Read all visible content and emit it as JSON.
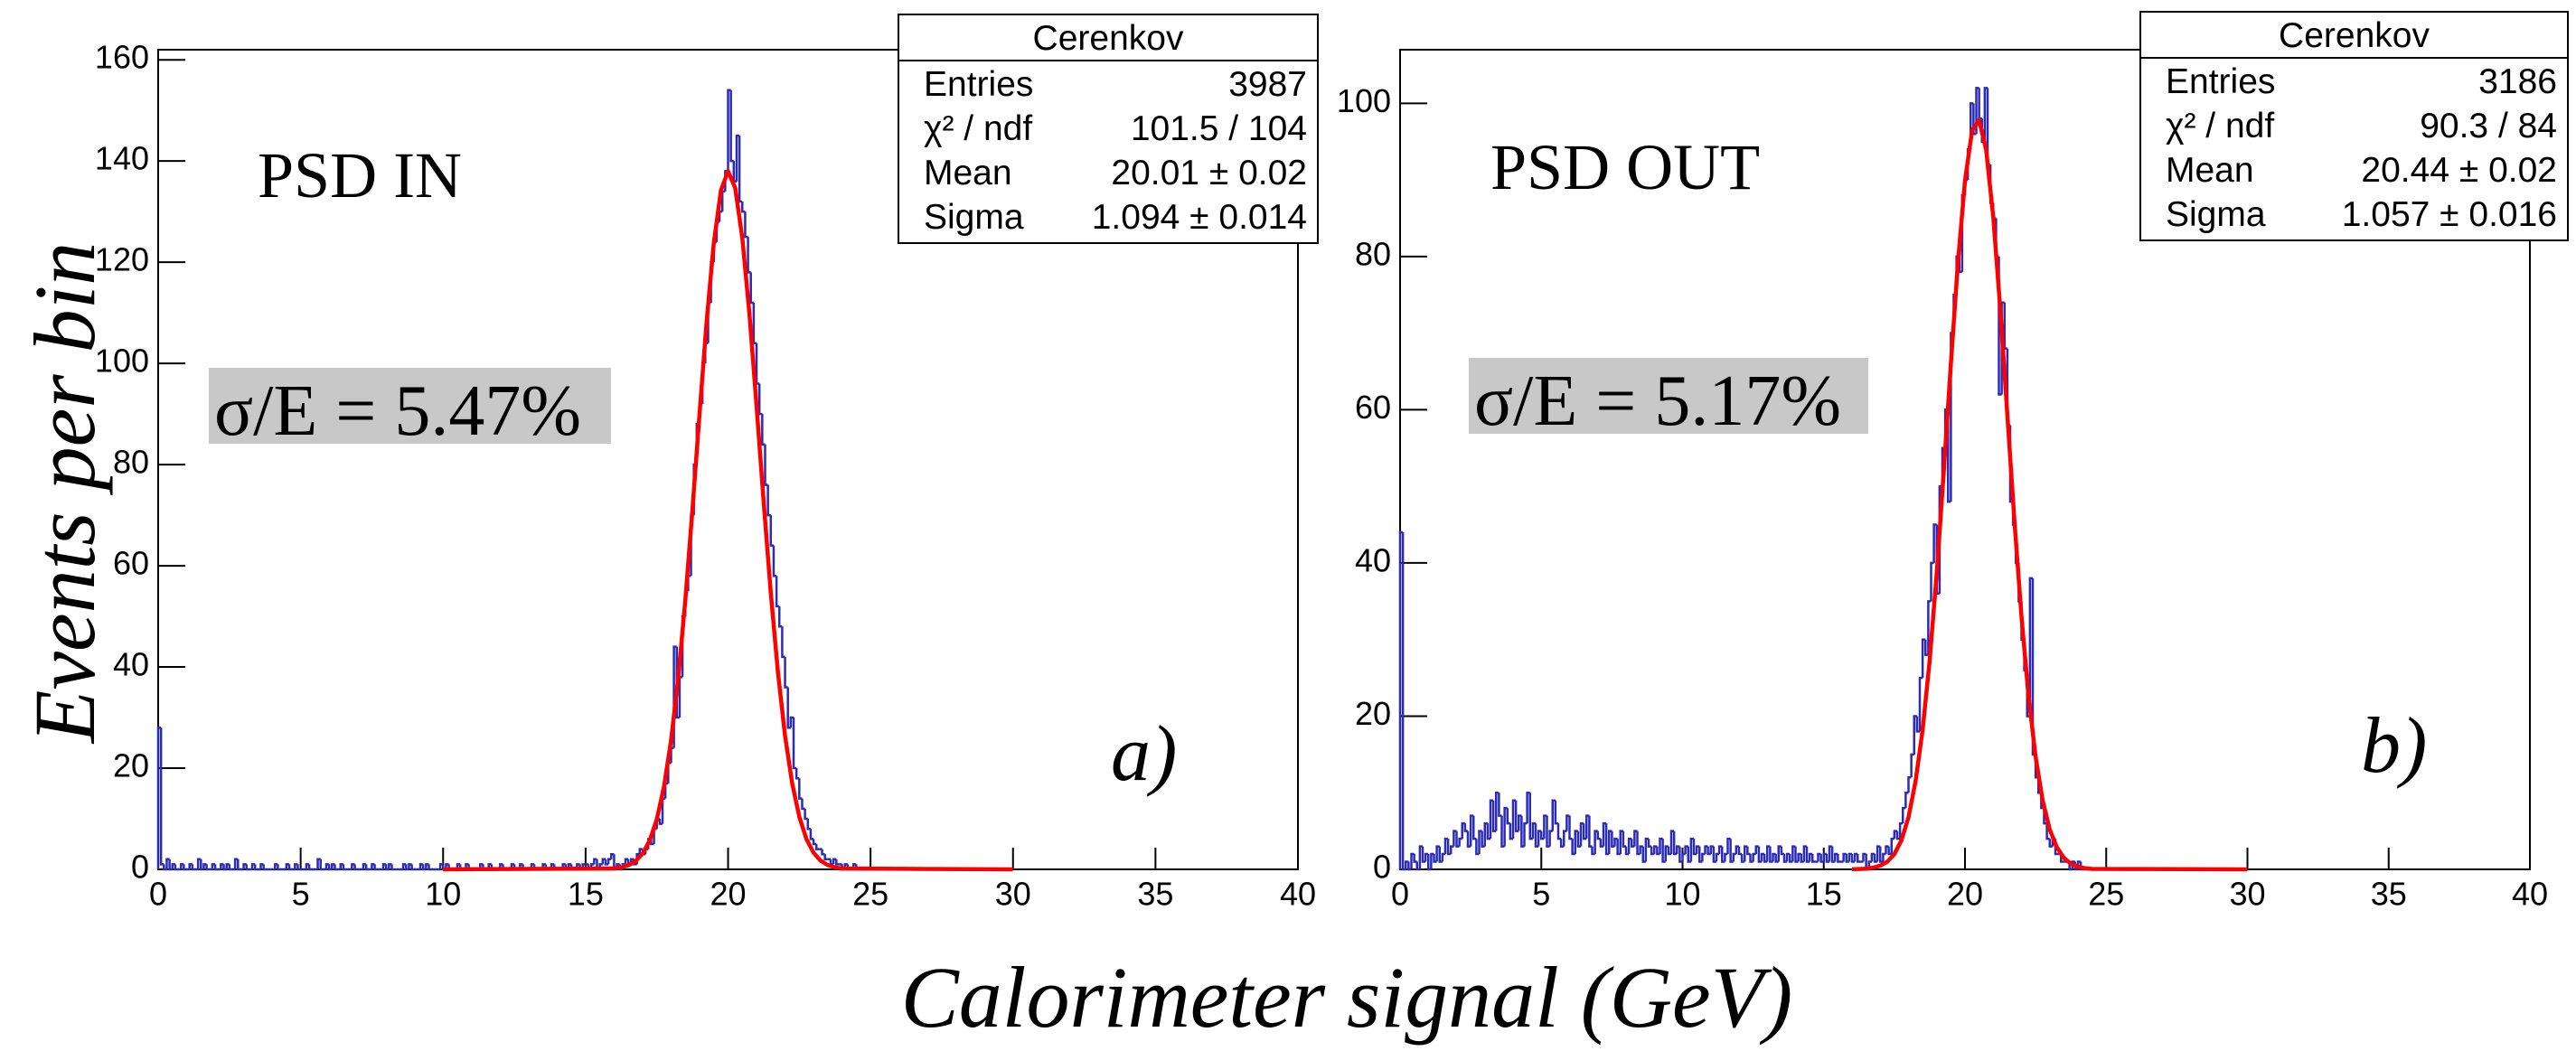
{
  "xlabel": "Calorimeter signal (GeV)",
  "ylabel": "Events per bin",
  "chart_data": [
    {
      "type": "histogram",
      "label": "PSD IN",
      "resolution": "σ/E = 5.47%",
      "panel": "a)",
      "stats": {
        "title": "Cerenkov",
        "rows": [
          [
            "Entries",
            "3987"
          ],
          [
            "χ² / ndf",
            "101.5 / 104"
          ],
          [
            "Mean",
            "20.01 ± 0.02"
          ],
          [
            "Sigma",
            "1.094 ± 0.014"
          ]
        ]
      },
      "color": "#2b2bb5",
      "fit_color": "#ff0000",
      "xlim": [
        0,
        40
      ],
      "xticks": [
        0,
        5,
        10,
        15,
        20,
        25,
        30,
        35,
        40
      ],
      "ylim": [
        0,
        162
      ],
      "yticks": [
        0,
        20,
        40,
        60,
        80,
        100,
        120,
        140,
        160
      ],
      "bins": [
        0,
        0.1,
        0.2,
        0.3,
        0.4,
        0.5,
        0.6,
        0.7,
        0.8,
        0.9,
        1,
        1.1,
        1.2,
        1.3,
        1.4,
        1.5,
        1.6,
        1.7,
        1.8,
        1.9,
        2,
        2.1,
        2.2,
        2.3,
        2.4,
        2.5,
        2.6,
        2.7,
        2.8,
        2.9,
        3,
        3.1,
        3.2,
        3.3,
        3.4,
        3.5,
        3.6,
        3.7,
        3.8,
        3.9,
        4,
        4.1,
        4.2,
        4.3,
        4.4,
        4.5,
        4.6,
        4.7,
        4.8,
        4.9,
        5,
        5.1,
        5.2,
        5.3,
        5.4,
        5.5,
        5.6,
        5.7,
        5.8,
        5.9,
        6,
        6.1,
        6.2,
        6.3,
        6.4,
        6.5,
        6.6,
        6.7,
        6.8,
        6.9,
        7,
        7.1,
        7.2,
        7.3,
        7.4,
        7.5,
        7.6,
        7.7,
        7.8,
        7.9,
        8,
        8.1,
        8.2,
        8.3,
        8.4,
        8.5,
        8.6,
        8.7,
        8.8,
        8.9,
        9,
        9.1,
        9.2,
        9.3,
        9.4,
        9.5,
        9.6,
        9.7,
        9.8,
        9.9,
        10,
        10.1,
        10.2,
        10.3,
        10.4,
        10.5,
        10.6,
        10.7,
        10.8,
        10.9,
        11,
        11.1,
        11.2,
        11.3,
        11.4,
        11.5,
        11.6,
        11.7,
        11.8,
        11.9,
        12,
        12.1,
        12.2,
        12.3,
        12.4,
        12.5,
        12.6,
        12.7,
        12.8,
        12.9,
        13,
        13.1,
        13.2,
        13.3,
        13.4,
        13.5,
        13.6,
        13.7,
        13.8,
        13.9,
        14,
        14.1,
        14.2,
        14.3,
        14.4,
        14.5,
        14.6,
        14.7,
        14.8,
        14.9,
        15,
        15.1,
        15.2,
        15.3,
        15.4,
        15.5,
        15.6,
        15.7,
        15.8,
        15.9,
        16,
        16.1,
        16.2,
        16.3,
        16.4,
        16.5,
        16.6,
        16.7,
        16.8,
        16.9,
        17,
        17.1,
        17.2,
        17.3,
        17.4,
        17.5,
        17.6,
        17.7,
        17.8,
        17.9,
        18,
        18.1,
        18.2,
        18.3,
        18.4,
        18.5,
        18.6,
        18.7,
        18.8,
        18.9,
        19,
        19.1,
        19.2,
        19.3,
        19.4,
        19.5,
        19.6,
        19.7,
        19.8,
        19.9,
        20,
        20.1,
        20.2,
        20.3,
        20.4,
        20.5,
        20.6,
        20.7,
        20.8,
        20.9,
        21,
        21.1,
        21.2,
        21.3,
        21.4,
        21.5,
        21.6,
        21.7,
        21.8,
        21.9,
        22,
        22.1,
        22.2,
        22.3,
        22.4,
        22.5,
        22.6,
        22.7,
        22.8,
        22.9,
        23,
        23.1,
        23.2,
        23.3,
        23.4,
        23.5,
        23.6,
        23.7,
        23.8,
        23.9,
        24,
        24.1,
        24.2,
        24.3,
        24.4,
        24.5,
        24.6,
        24.7,
        24.8,
        24.9,
        25
      ],
      "counts": [
        28,
        1,
        0,
        2,
        0,
        1,
        0,
        0,
        1,
        0,
        0,
        1,
        0,
        0,
        2,
        0,
        1,
        0,
        0,
        1,
        0,
        0,
        1,
        0,
        1,
        0,
        0,
        2,
        0,
        0,
        1,
        0,
        0,
        1,
        0,
        0,
        1,
        0,
        0,
        0,
        0,
        1,
        0,
        0,
        0,
        1,
        0,
        0,
        1,
        0,
        0,
        0,
        1,
        0,
        0,
        0,
        2,
        0,
        0,
        1,
        0,
        1,
        0,
        0,
        1,
        0,
        0,
        0,
        1,
        0,
        0,
        0,
        1,
        0,
        0,
        1,
        0,
        0,
        0,
        1,
        0,
        1,
        0,
        0,
        0,
        0,
        1,
        0,
        1,
        0,
        0,
        0,
        1,
        0,
        1,
        0,
        0,
        0,
        0,
        1,
        0,
        1,
        0,
        0,
        0,
        1,
        0,
        0,
        1,
        0,
        0,
        0,
        0,
        1,
        0,
        0,
        1,
        0,
        0,
        0,
        1,
        0,
        0,
        0,
        1,
        0,
        0,
        1,
        0,
        0,
        0,
        1,
        0,
        0,
        0,
        1,
        0,
        0,
        1,
        0,
        0,
        0,
        1,
        0,
        1,
        0,
        0,
        1,
        0,
        1,
        1,
        0,
        1,
        2,
        0,
        1,
        2,
        1,
        2,
        3,
        0,
        1,
        0,
        1,
        2,
        1,
        2,
        1,
        3,
        4,
        3,
        4,
        6,
        5,
        8,
        10,
        9,
        14,
        17,
        21,
        24,
        44,
        30,
        38,
        50,
        55,
        58,
        70,
        80,
        88,
        92,
        100,
        104,
        112,
        120,
        124,
        128,
        130,
        134,
        138,
        154,
        140,
        136,
        145,
        132,
        130,
        125,
        118,
        112,
        104,
        96,
        90,
        84,
        76,
        70,
        64,
        58,
        52,
        48,
        42,
        36,
        28,
        30,
        20,
        18,
        14,
        12,
        10,
        8,
        6,
        5,
        4,
        4,
        3,
        2,
        2,
        1,
        2,
        1,
        1,
        0,
        1,
        0,
        0,
        1,
        0,
        0,
        0,
        0,
        0
      ],
      "fit": {
        "x": [
          10,
          16,
          16.25,
          16.5,
          16.75,
          17,
          17.25,
          17.5,
          17.75,
          18,
          18.25,
          18.5,
          18.75,
          19,
          19.25,
          19.5,
          19.75,
          20,
          20.25,
          20.5,
          20.75,
          21,
          21.25,
          21.5,
          21.75,
          22,
          22.25,
          22.5,
          22.75,
          23,
          23.25,
          23.5,
          23.75,
          24,
          30
        ],
        "y": [
          0,
          0.17,
          0.38,
          0.8,
          1.6,
          3.1,
          5.7,
          9.9,
          16.3,
          25.5,
          37.8,
          53.2,
          71.1,
          90.1,
          108.4,
          123.8,
          134.2,
          138,
          134.7,
          124.8,
          109.8,
          91.6,
          72.6,
          54.6,
          39,
          26.4,
          17,
          10.4,
          6,
          3.3,
          1.7,
          0.85,
          0.4,
          0.18,
          0
        ]
      }
    },
    {
      "type": "histogram",
      "label": "PSD OUT",
      "resolution": "σ/E = 5.17%",
      "panel": "b)",
      "stats": {
        "title": "Cerenkov",
        "rows": [
          [
            "Entries",
            "3186"
          ],
          [
            "χ² / ndf",
            "90.3 / 84"
          ],
          [
            "Mean",
            "20.44 ± 0.02"
          ],
          [
            "Sigma",
            "1.057 ± 0.016"
          ]
        ]
      },
      "color": "#2b2bb5",
      "fit_color": "#ff0000",
      "xlim": [
        0,
        40
      ],
      "xticks": [
        0,
        5,
        10,
        15,
        20,
        25,
        30,
        35,
        40
      ],
      "ylim": [
        0,
        107
      ],
      "yticks": [
        0,
        20,
        40,
        60,
        80,
        100
      ],
      "bins": [
        0,
        0.1,
        0.2,
        0.3,
        0.4,
        0.5,
        0.6,
        0.7,
        0.8,
        0.9,
        1,
        1.1,
        1.2,
        1.3,
        1.4,
        1.5,
        1.6,
        1.7,
        1.8,
        1.9,
        2,
        2.1,
        2.2,
        2.3,
        2.4,
        2.5,
        2.6,
        2.7,
        2.8,
        2.9,
        3,
        3.1,
        3.2,
        3.3,
        3.4,
        3.5,
        3.6,
        3.7,
        3.8,
        3.9,
        4,
        4.1,
        4.2,
        4.3,
        4.4,
        4.5,
        4.6,
        4.7,
        4.8,
        4.9,
        5,
        5.1,
        5.2,
        5.3,
        5.4,
        5.5,
        5.6,
        5.7,
        5.8,
        5.9,
        6,
        6.1,
        6.2,
        6.3,
        6.4,
        6.5,
        6.6,
        6.7,
        6.8,
        6.9,
        7,
        7.1,
        7.2,
        7.3,
        7.4,
        7.5,
        7.6,
        7.7,
        7.8,
        7.9,
        8,
        8.1,
        8.2,
        8.3,
        8.4,
        8.5,
        8.6,
        8.7,
        8.8,
        8.9,
        9,
        9.1,
        9.2,
        9.3,
        9.4,
        9.5,
        9.6,
        9.7,
        9.8,
        9.9,
        10,
        10.1,
        10.2,
        10.3,
        10.4,
        10.5,
        10.6,
        10.7,
        10.8,
        10.9,
        11,
        11.1,
        11.2,
        11.3,
        11.4,
        11.5,
        11.6,
        11.7,
        11.8,
        11.9,
        12,
        12.1,
        12.2,
        12.3,
        12.4,
        12.5,
        12.6,
        12.7,
        12.8,
        12.9,
        13,
        13.1,
        13.2,
        13.3,
        13.4,
        13.5,
        13.6,
        13.7,
        13.8,
        13.9,
        14,
        14.1,
        14.2,
        14.3,
        14.4,
        14.5,
        14.6,
        14.7,
        14.8,
        14.9,
        15,
        15.1,
        15.2,
        15.3,
        15.4,
        15.5,
        15.6,
        15.7,
        15.8,
        15.9,
        16,
        16.1,
        16.2,
        16.3,
        16.4,
        16.5,
        16.6,
        16.7,
        16.8,
        16.9,
        17,
        17.1,
        17.2,
        17.3,
        17.4,
        17.5,
        17.6,
        17.7,
        17.8,
        17.9,
        18,
        18.1,
        18.2,
        18.3,
        18.4,
        18.5,
        18.6,
        18.7,
        18.8,
        18.9,
        19,
        19.1,
        19.2,
        19.3,
        19.4,
        19.5,
        19.6,
        19.7,
        19.8,
        19.9,
        20,
        20.1,
        20.2,
        20.3,
        20.4,
        20.5,
        20.6,
        20.7,
        20.8,
        20.9,
        21,
        21.1,
        21.2,
        21.3,
        21.4,
        21.5,
        21.6,
        21.7,
        21.8,
        21.9,
        22,
        22.1,
        22.2,
        22.3,
        22.4,
        22.5,
        22.6,
        22.7,
        22.8,
        22.9,
        23,
        23.1,
        23.2,
        23.3,
        23.4,
        23.5,
        23.6,
        23.7,
        23.8,
        23.9,
        24,
        24.1,
        24.2,
        24.3,
        24.4,
        24.5,
        24.6,
        24.7,
        24.8,
        24.9,
        25
      ],
      "counts": [
        44,
        0,
        1,
        0,
        2,
        1,
        0,
        3,
        1,
        2,
        0,
        2,
        1,
        3,
        1,
        2,
        4,
        2,
        3,
        5,
        3,
        4,
        6,
        5,
        3,
        7,
        4,
        2,
        5,
        3,
        6,
        4,
        9,
        5,
        10,
        7,
        3,
        8,
        6,
        4,
        9,
        5,
        7,
        3,
        6,
        10,
        4,
        6,
        3,
        5,
        4,
        7,
        3,
        5,
        9,
        6,
        4,
        3,
        5,
        7,
        4,
        2,
        5,
        3,
        6,
        4,
        7,
        3,
        2,
        5,
        4,
        3,
        6,
        2,
        5,
        3,
        4,
        2,
        5,
        3,
        2,
        4,
        3,
        5,
        2,
        3,
        1,
        4,
        3,
        2,
        3,
        2,
        4,
        1,
        3,
        2,
        5,
        2,
        3,
        1,
        2,
        3,
        1,
        4,
        2,
        3,
        1,
        2,
        3,
        2,
        3,
        1,
        2,
        3,
        1,
        2,
        4,
        1,
        2,
        3,
        2,
        1,
        3,
        2,
        1,
        2,
        3,
        1,
        2,
        1,
        3,
        1,
        2,
        1,
        3,
        2,
        1,
        2,
        1,
        3,
        1,
        2,
        1,
        3,
        1,
        2,
        1,
        1,
        2,
        1,
        2,
        1,
        3,
        1,
        2,
        1,
        1,
        2,
        1,
        2,
        1,
        2,
        1,
        1,
        2,
        0,
        1,
        2,
        1,
        3,
        1,
        2,
        3,
        2,
        4,
        5,
        4,
        6,
        8,
        10,
        12,
        15,
        20,
        18,
        25,
        30,
        28,
        35,
        40,
        45,
        36,
        50,
        55,
        60,
        48,
        70,
        75,
        80,
        78,
        88,
        90,
        94,
        100,
        96,
        102,
        98,
        95,
        102,
        92,
        87,
        85,
        80,
        62,
        74,
        68,
        58,
        48,
        45,
        40,
        35,
        30,
        26,
        20,
        38,
        15,
        12,
        10,
        8,
        6,
        4,
        3,
        4,
        2,
        2,
        1,
        1,
        1,
        0,
        1,
        0,
        1,
        0,
        0,
        0,
        0,
        0,
        0,
        0,
        0,
        0
      ],
      "fit": {
        "x": [
          16,
          16.25,
          16.5,
          16.75,
          17,
          17.25,
          17.5,
          17.75,
          18,
          18.25,
          18.5,
          18.75,
          19,
          19.25,
          19.5,
          19.75,
          20,
          20.25,
          20.5,
          20.75,
          21,
          21.25,
          21.5,
          21.75,
          22,
          22.25,
          22.5,
          22.75,
          23,
          23.25,
          23.5,
          23.75,
          24,
          24.25,
          24.5,
          30
        ],
        "y": [
          0.01,
          0.04,
          0.09,
          0.22,
          0.49,
          1,
          2,
          3.8,
          6.8,
          11.5,
          18.2,
          27.3,
          38.7,
          52,
          66,
          79.2,
          89.9,
          96.4,
          97.8,
          93.9,
          85.2,
          73.1,
          59.3,
          45.5,
          33,
          22.6,
          14.7,
          9,
          5.2,
          2.9,
          1.5,
          0.73,
          0.34,
          0.15,
          0.06,
          0
        ]
      }
    }
  ]
}
